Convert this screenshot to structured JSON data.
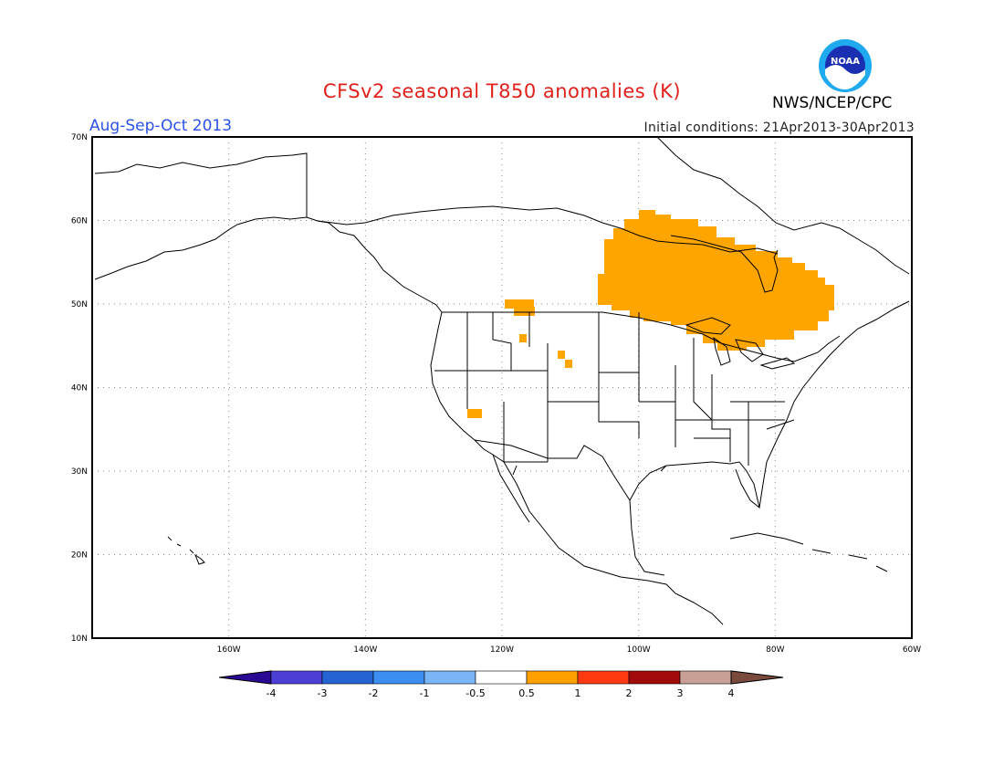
{
  "title": "CFSv2 seasonal T850 anomalies (K)",
  "period": "Aug-Sep-Oct 2013",
  "initial_conditions": "Initial conditions: 21Apr2013-30Apr2013",
  "agency": "NWS/NCEP/CPC",
  "logo_text": "NOAA",
  "map": {
    "lon_labels": [
      "160W",
      "140W",
      "120W",
      "100W",
      "80W",
      "60W"
    ],
    "lat_labels": [
      "70N",
      "60N",
      "50N",
      "40N",
      "30N",
      "20N",
      "10N"
    ],
    "colors": {
      "land_outline": "#000000",
      "anomaly_fill": "#ffa500",
      "grid": "#888888",
      "frame": "#000000"
    }
  },
  "colorbar": {
    "labels": [
      "-4",
      "-3",
      "-2",
      "-1",
      "-0.5",
      "0.5",
      "1",
      "2",
      "3",
      "4"
    ],
    "colors": [
      "#2a0a94",
      "#4b3fd6",
      "#2463d1",
      "#3c8ff0",
      "#7ab6f6",
      "#ffffff",
      "#ffa000",
      "#ff3a10",
      "#a00a0a",
      "#c8a096",
      "#7a4a3c"
    ]
  }
}
